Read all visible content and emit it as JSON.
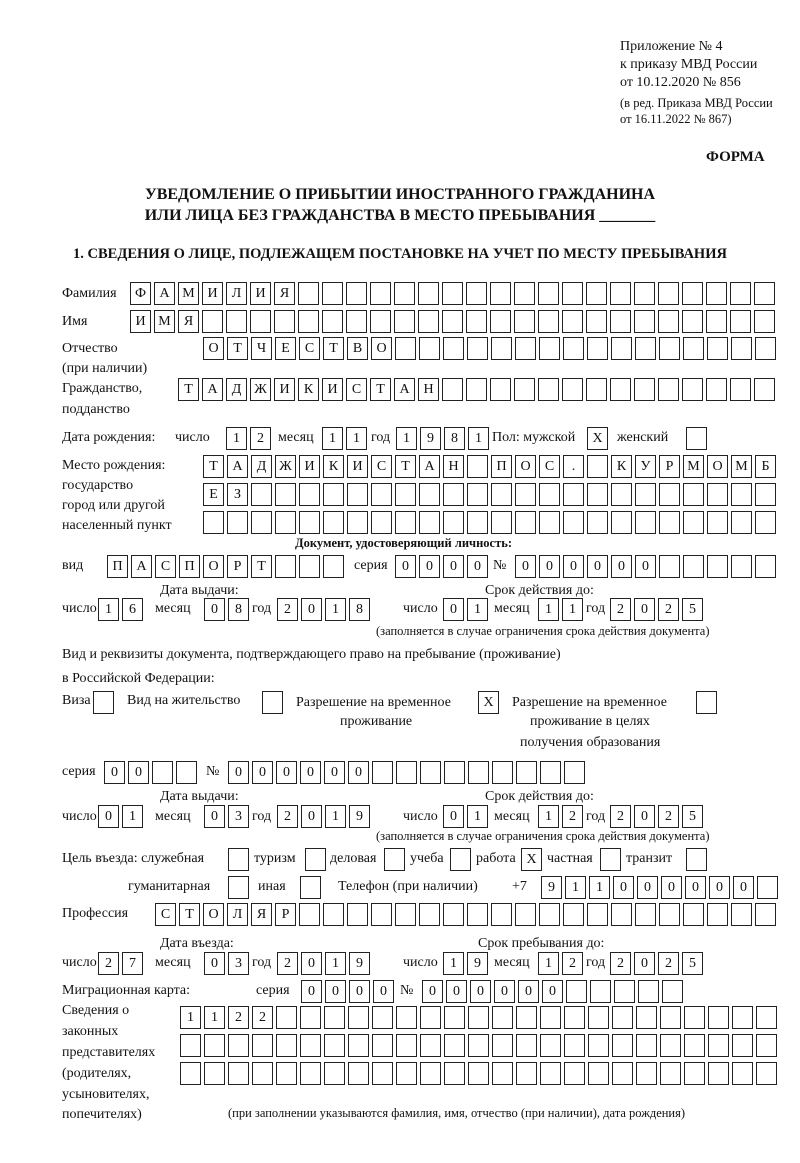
{
  "header": {
    "line1": "Приложение № 4",
    "line2": "к приказу МВД России",
    "line3": "от 10.12.2020 № 856",
    "line4": "(в ред. Приказа МВД России",
    "line5": "от 16.11.2022 № 867)",
    "forma": "ФОРМА"
  },
  "title": {
    "line1": "УВЕДОМЛЕНИЕ О ПРИБЫТИИ ИНОСТРАННОГО ГРАЖДАНИНА",
    "line2": "ИЛИ ЛИЦА БЕЗ ГРАЖДАНСТВА В МЕСТО ПРЕБЫВАНИЯ _______"
  },
  "section1": "1. СВЕДЕНИЯ О ЛИЦЕ, ПОДЛЕЖАЩЕМ ПОСТАНОВКЕ НА УЧЕТ ПО МЕСТУ ПРЕБЫВАНИЯ",
  "labels": {
    "surname": "Фамилия",
    "name": "Имя",
    "patronymic": "Отчество",
    "patronymic2": "(при наличии)",
    "citizenship": "Гражданство,",
    "citizenship2": "подданство",
    "birth_date": "Дата рождения:",
    "day": "число",
    "month": "месяц",
    "year": "год",
    "sex": "Пол: мужской",
    "female": "женский",
    "birth_place": "Место рождения:",
    "bp2": "государство",
    "bp3": "город или другой",
    "bp4": "населенный пункт",
    "id_doc": "Документ, удостоверяющий личность:",
    "kind": "вид",
    "series": "серия",
    "number": "№",
    "issue_date": "Дата выдачи:",
    "valid_until": "Срок действия до:",
    "valid_note": "(заполняется в случае ограничения срока действия документа)",
    "right_doc": "Вид и реквизиты документа, подтверждающего право на пребывание (проживание)",
    "right_doc2": "в Российской Федерации:",
    "visa": "Виза",
    "residence": "Вид на жительство",
    "trp": "Разрешение на временное",
    "trp2": "проживание",
    "trp_edu": "Разрешение на временное",
    "trp_edu2": "проживание в целях",
    "trp_edu3": "получения образования",
    "purpose": "Цель въезда: служебная",
    "tourism": "туризм",
    "business": "деловая",
    "study": "учеба",
    "work": "работа",
    "private": "частная",
    "transit": "транзит",
    "humanitarian": "гуманитарная",
    "other": "иная",
    "phone": "Телефон (при наличии)",
    "phone_prefix": "+7",
    "profession": "Профессия",
    "entry_date": "Дата въезда:",
    "stay_until": "Срок пребывания до:",
    "migration_card": "Миграционная карта:",
    "reps": "Сведения о",
    "reps2": "законных",
    "reps3": "представителях",
    "reps4": "(родителях,",
    "reps5": "усыновителях,",
    "reps6": "попечителях)",
    "reps_note": "(при заполнении указываются фамилия, имя, отчество (при наличии), дата рождения)"
  },
  "fields": {
    "surname": "ФАМИЛИЯ",
    "name": "ИМЯ",
    "patronymic": "ОТЧЕСТВО",
    "citizenship": "ТАДЖИКИСТАН",
    "birth_day": "12",
    "birth_month": "11",
    "birth_year": "1981",
    "male": "X",
    "female": "",
    "birth_place1": "ТАДЖИКИСТАН ПОС. КУРМОМБ",
    "birth_place2": "ЕЗ",
    "birth_place3": "",
    "doc_kind": "ПАСПОРТ",
    "doc_series": "0000",
    "doc_number": "000000",
    "doc_issue_day": "16",
    "doc_issue_month": "08",
    "doc_issue_year": "2018",
    "doc_valid_day": "01",
    "doc_valid_month": "11",
    "doc_valid_year": "2025",
    "visa": "",
    "residence": "",
    "trp": "X",
    "trp_edu": "",
    "rd_series": "00",
    "rd_number": "000000",
    "rd_issue_day": "01",
    "rd_issue_month": "03",
    "rd_issue_year": "2019",
    "rd_valid_day": "01",
    "rd_valid_month": "12",
    "rd_valid_year": "2025",
    "p_official": "",
    "p_tourism": "",
    "p_business": "",
    "p_study": "",
    "p_work": "X",
    "p_private": "",
    "p_transit": "",
    "p_humanitarian": "",
    "p_other": "",
    "phone": "911000000",
    "profession": "СТОЛЯР",
    "entry_day": "27",
    "entry_month": "03",
    "entry_year": "2019",
    "stay_day": "19",
    "stay_month": "12",
    "stay_year": "2025",
    "mc_series": "0000",
    "mc_number": "000000",
    "reps1": "1122",
    "reps2": "",
    "reps3": ""
  }
}
